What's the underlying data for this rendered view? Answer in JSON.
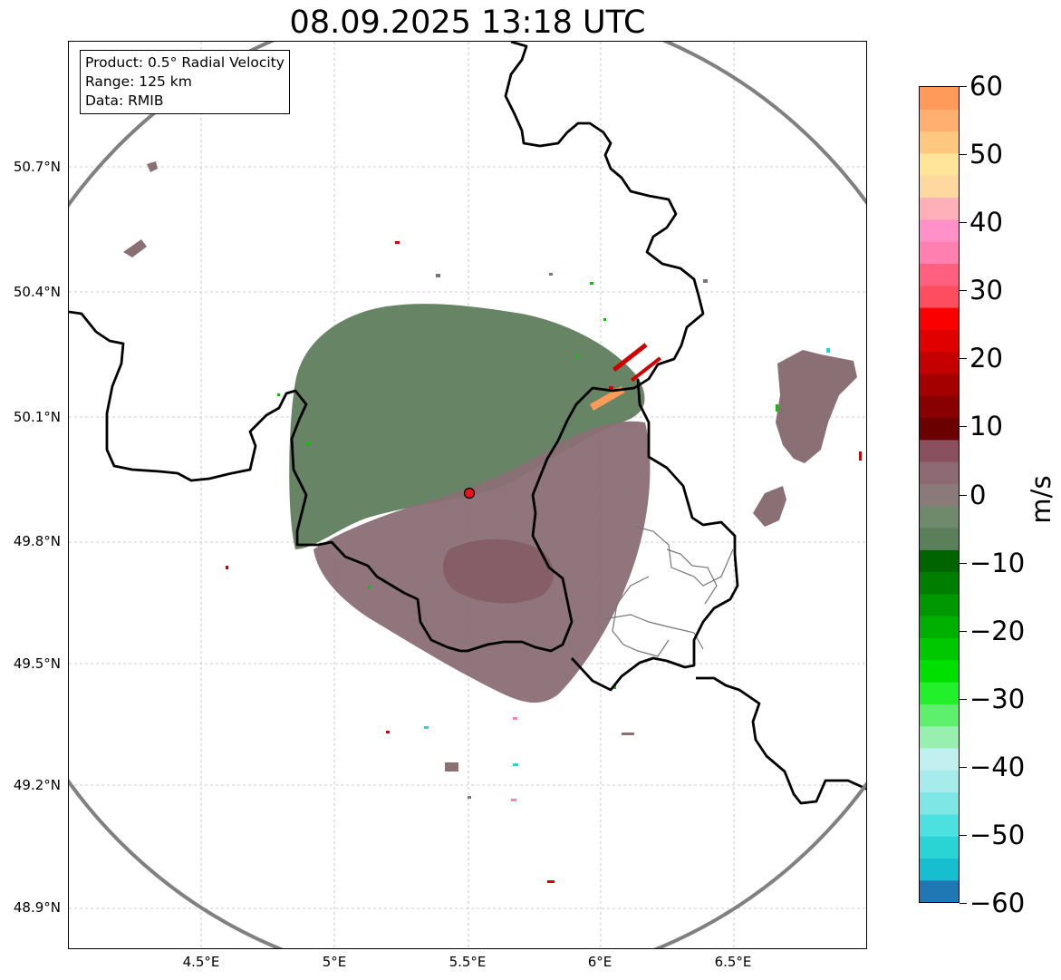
{
  "title": "08.09.2025 13:18 UTC",
  "info_box": {
    "product": "Product: 0.5° Radial Velocity",
    "range": "Range: 125 km",
    "data": "Data: RMIB"
  },
  "axes": {
    "lat_labels": [
      "50.7°N",
      "50.4°N",
      "50.1°N",
      "49.8°N",
      "49.5°N",
      "49.2°N",
      "48.9°N"
    ],
    "lon_labels": [
      "4.5°E",
      "5°E",
      "5.5°E",
      "6°E",
      "6.5°E"
    ],
    "grid": true
  },
  "radar_site": {
    "lon": 5.5,
    "lat": 49.91,
    "marker_color": "#e8141a"
  },
  "colorbar": {
    "unit": "m/s",
    "min": -60,
    "max": 60,
    "tick_labels": [
      "60",
      "50",
      "40",
      "30",
      "20",
      "10",
      "0",
      "−10",
      "−20",
      "−30",
      "−40",
      "−50",
      "−60"
    ],
    "colors": [
      "#1f77b4",
      "#17becf",
      "#2ad4d4",
      "#4ce0e0",
      "#7fe6e6",
      "#a6ecec",
      "#c2f0f0",
      "#98f0b0",
      "#5cf06c",
      "#22f02a",
      "#00e000",
      "#00c800",
      "#00b000",
      "#009800",
      "#007e00",
      "#006400",
      "#5a7f5a",
      "#6f8a6a",
      "#8a7a7a",
      "#8d6a74",
      "#8a5060",
      "#6b0000",
      "#880000",
      "#a50000",
      "#c40000",
      "#e00000",
      "#fb0000",
      "#ff4d60",
      "#ff6080",
      "#ff80b0",
      "#ff90c8",
      "#ffb0b8",
      "#ffd8a0",
      "#ffe59a",
      "#ffc880",
      "#ffb070",
      "#ff9a58"
    ]
  }
}
